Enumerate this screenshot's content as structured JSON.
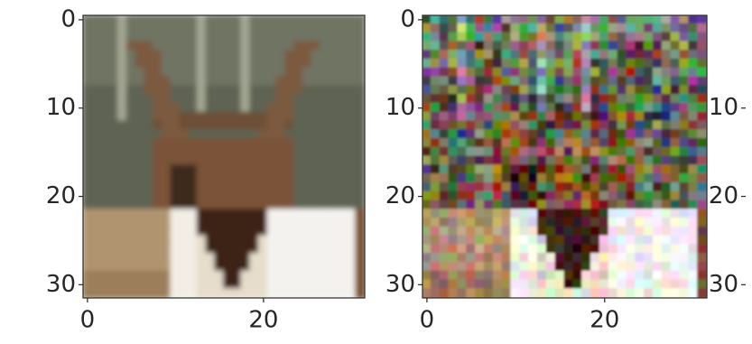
{
  "chart_data": [
    {
      "type": "image",
      "xlim": [
        -0.5,
        31.5
      ],
      "ylim": [
        31.5,
        -0.5
      ],
      "xticks": [
        0,
        20
      ],
      "yticks": [
        0,
        10,
        20,
        30
      ]
    },
    {
      "type": "image",
      "xlim": [
        -0.5,
        31.5
      ],
      "ylim": [
        31.5,
        -0.5
      ],
      "xticks": [
        0,
        20
      ],
      "yticks": [
        0,
        10,
        20,
        30
      ]
    },
    {
      "type": "image",
      "ylim": [
        31.5,
        -0.5
      ],
      "yticks": [
        10,
        20,
        30
      ]
    }
  ]
}
